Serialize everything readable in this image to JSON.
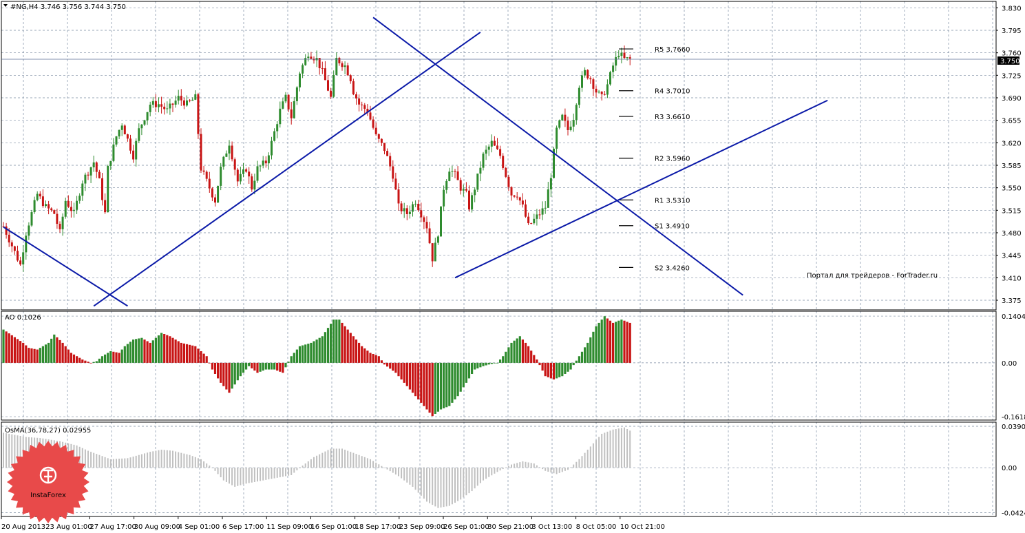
{
  "title": "#NG,H4  3.746 3.756 3.744 3.750",
  "current_price": "3.750",
  "watermark": "Портал для трейдеров - ForTrader.ru",
  "logo": "InstaForex",
  "colors": {
    "bull": "#2e8b2e",
    "bear": "#c81414",
    "trendline": "#0b1aa8",
    "grid": "#7a8aa0",
    "osma": "#c0c0c0",
    "logo_red": "#e84a4a"
  },
  "chart_data": [
    {
      "type": "candlestick",
      "panel": "price",
      "symbol": "#NG",
      "timeframe": "H4",
      "ohlc": [
        "3.746",
        "3.756",
        "3.744",
        "3.750"
      ],
      "ylim": [
        3.36,
        3.84
      ],
      "yticks": [
        "3.830",
        "3.795",
        "3.760",
        "3.725",
        "3.690",
        "3.655",
        "3.620",
        "3.585",
        "3.550",
        "3.515",
        "3.480",
        "3.445",
        "3.410",
        "3.375"
      ],
      "xticks": [
        "20 Aug 2013",
        "23 Aug 01:00",
        "27 Aug 17:00",
        "30 Aug 09:00",
        "4 Sep 01:00",
        "6 Sep 17:00",
        "11 Sep 09:00",
        "16 Sep 01:00",
        "18 Sep 17:00",
        "23 Sep 09:00",
        "26 Sep 01:00",
        "30 Sep 21:00",
        "3 Oct 13:00",
        "8 Oct 05:00",
        "10 Oct 21:00"
      ],
      "close_path": [
        [
          0,
          3.49
        ],
        [
          6,
          3.43
        ],
        [
          8,
          3.48
        ],
        [
          12,
          3.54
        ],
        [
          15,
          3.52
        ],
        [
          18,
          3.51
        ],
        [
          20,
          3.48
        ],
        [
          22,
          3.53
        ],
        [
          25,
          3.51
        ],
        [
          28,
          3.56
        ],
        [
          32,
          3.59
        ],
        [
          34,
          3.56
        ],
        [
          36,
          3.51
        ],
        [
          37,
          3.58
        ],
        [
          40,
          3.63
        ],
        [
          42,
          3.65
        ],
        [
          46,
          3.6
        ],
        [
          48,
          3.64
        ],
        [
          52,
          3.68
        ],
        [
          55,
          3.68
        ],
        [
          58,
          3.67
        ],
        [
          62,
          3.69
        ],
        [
          65,
          3.68
        ],
        [
          68,
          3.69
        ],
        [
          70,
          3.58
        ],
        [
          72,
          3.56
        ],
        [
          75,
          3.53
        ],
        [
          77,
          3.58
        ],
        [
          80,
          3.62
        ],
        [
          83,
          3.56
        ],
        [
          86,
          3.58
        ],
        [
          88,
          3.55
        ],
        [
          90,
          3.58
        ],
        [
          93,
          3.59
        ],
        [
          95,
          3.62
        ],
        [
          98,
          3.67
        ],
        [
          100,
          3.69
        ],
        [
          102,
          3.66
        ],
        [
          105,
          3.73
        ],
        [
          108,
          3.76
        ],
        [
          111,
          3.75
        ],
        [
          113,
          3.73
        ],
        [
          116,
          3.69
        ],
        [
          118,
          3.75
        ],
        [
          121,
          3.74
        ],
        [
          123,
          3.72
        ],
        [
          124,
          3.7
        ],
        [
          126,
          3.68
        ],
        [
          129,
          3.67
        ],
        [
          132,
          3.63
        ],
        [
          135,
          3.61
        ],
        [
          138,
          3.57
        ],
        [
          140,
          3.52
        ],
        [
          143,
          3.51
        ],
        [
          146,
          3.53
        ],
        [
          148,
          3.51
        ],
        [
          150,
          3.49
        ],
        [
          152,
          3.44
        ],
        [
          154,
          3.48
        ],
        [
          156,
          3.55
        ],
        [
          158,
          3.58
        ],
        [
          160,
          3.57
        ],
        [
          162,
          3.55
        ],
        [
          164,
          3.54
        ],
        [
          165,
          3.52
        ],
        [
          167,
          3.55
        ],
        [
          170,
          3.6
        ],
        [
          173,
          3.62
        ],
        [
          176,
          3.6
        ],
        [
          178,
          3.57
        ],
        [
          180,
          3.54
        ],
        [
          182,
          3.54
        ],
        [
          184,
          3.52
        ],
        [
          186,
          3.49
        ],
        [
          188,
          3.5
        ],
        [
          190,
          3.51
        ],
        [
          192,
          3.52
        ],
        [
          194,
          3.57
        ],
        [
          196,
          3.64
        ],
        [
          198,
          3.66
        ],
        [
          200,
          3.64
        ],
        [
          202,
          3.66
        ],
        [
          204,
          3.71
        ],
        [
          206,
          3.73
        ],
        [
          208,
          3.72
        ],
        [
          210,
          3.7
        ],
        [
          212,
          3.69
        ],
        [
          214,
          3.71
        ],
        [
          216,
          3.74
        ],
        [
          218,
          3.76
        ],
        [
          220,
          3.75
        ],
        [
          222,
          3.75
        ]
      ],
      "pivot_levels": [
        {
          "label": "R5 3.7660",
          "value": 3.766
        },
        {
          "label": "R4 3.7010",
          "value": 3.701
        },
        {
          "label": "R3 3.6610",
          "value": 3.661
        },
        {
          "label": "R2 3.5960",
          "value": 3.596
        },
        {
          "label": "R1 3.5310",
          "value": 3.531
        },
        {
          "label": "S1 3.4910",
          "value": 3.491
        },
        {
          "label": "S2 3.4260",
          "value": 3.426
        }
      ],
      "trendlines": [
        {
          "from": [
            0,
            3.489
          ],
          "to": [
            44,
            3.366
          ]
        },
        {
          "from": [
            32,
            3.366
          ],
          "to": [
            169,
            3.792
          ]
        },
        {
          "from": [
            131,
            3.815
          ],
          "to": [
            262,
            3.383
          ]
        },
        {
          "from": [
            160,
            3.41
          ],
          "to": [
            292,
            3.686
          ]
        }
      ],
      "horizontal_line": 3.75
    },
    {
      "type": "histogram",
      "panel": "AO",
      "label": "AO 0.1026",
      "ylim": [
        -0.172,
        0.155
      ],
      "yticks": [
        "0.1404",
        "0.00",
        "-0.1618"
      ],
      "path": [
        [
          0,
          0.1
        ],
        [
          7,
          0.06
        ],
        [
          9,
          0.045
        ],
        [
          12,
          0.04
        ],
        [
          16,
          0.06
        ],
        [
          18,
          0.085
        ],
        [
          21,
          0.06
        ],
        [
          24,
          0.03
        ],
        [
          28,
          0.01
        ],
        [
          31,
          0.0
        ],
        [
          33,
          0.005
        ],
        [
          35,
          0.02
        ],
        [
          38,
          0.035
        ],
        [
          41,
          0.03
        ],
        [
          43,
          0.05
        ],
        [
          46,
          0.07
        ],
        [
          49,
          0.075
        ],
        [
          52,
          0.06
        ],
        [
          56,
          0.09
        ],
        [
          59,
          0.08
        ],
        [
          63,
          0.06
        ],
        [
          68,
          0.05
        ],
        [
          72,
          0.02
        ],
        [
          74,
          -0.02
        ],
        [
          77,
          -0.06
        ],
        [
          80,
          -0.09
        ],
        [
          84,
          -0.04
        ],
        [
          87,
          -0.01
        ],
        [
          90,
          -0.03
        ],
        [
          93,
          -0.02
        ],
        [
          96,
          -0.02
        ],
        [
          99,
          -0.03
        ],
        [
          102,
          0.02
        ],
        [
          105,
          0.05
        ],
        [
          109,
          0.06
        ],
        [
          113,
          0.08
        ],
        [
          117,
          0.13
        ],
        [
          119,
          0.13
        ],
        [
          123,
          0.09
        ],
        [
          127,
          0.05
        ],
        [
          130,
          0.03
        ],
        [
          133,
          0.02
        ],
        [
          135,
          -0.005
        ],
        [
          139,
          -0.03
        ],
        [
          143,
          -0.07
        ],
        [
          147,
          -0.11
        ],
        [
          151,
          -0.15
        ],
        [
          152,
          -0.16
        ],
        [
          155,
          -0.14
        ],
        [
          158,
          -0.13
        ],
        [
          161,
          -0.1
        ],
        [
          164,
          -0.06
        ],
        [
          167,
          -0.02
        ],
        [
          170,
          -0.01
        ],
        [
          172,
          -0.005
        ],
        [
          175,
          0.0
        ],
        [
          177,
          0.02
        ],
        [
          180,
          0.06
        ],
        [
          183,
          0.08
        ],
        [
          186,
          0.05
        ],
        [
          189,
          0.01
        ],
        [
          192,
          -0.04
        ],
        [
          195,
          -0.05
        ],
        [
          198,
          -0.04
        ],
        [
          201,
          -0.02
        ],
        [
          204,
          0.02
        ],
        [
          207,
          0.06
        ],
        [
          210,
          0.11
        ],
        [
          213,
          0.14
        ],
        [
          216,
          0.12
        ],
        [
          219,
          0.13
        ],
        [
          222,
          0.12
        ]
      ]
    },
    {
      "type": "histogram",
      "panel": "OsMA",
      "label": "OsMA(36,78,27) 0.02955",
      "ylim": [
        -0.046,
        0.043
      ],
      "yticks": [
        "0.03909",
        "0.00",
        "-0.04245"
      ],
      "path": [
        [
          0,
          0.033
        ],
        [
          8,
          0.029
        ],
        [
          13,
          0.028
        ],
        [
          20,
          0.025
        ],
        [
          26,
          0.021
        ],
        [
          30,
          0.016
        ],
        [
          34,
          0.012
        ],
        [
          38,
          0.008
        ],
        [
          44,
          0.009
        ],
        [
          48,
          0.012
        ],
        [
          52,
          0.015
        ],
        [
          56,
          0.017
        ],
        [
          60,
          0.016
        ],
        [
          66,
          0.012
        ],
        [
          70,
          0.008
        ],
        [
          74,
          0.0
        ],
        [
          78,
          -0.012
        ],
        [
          82,
          -0.018
        ],
        [
          86,
          -0.015
        ],
        [
          92,
          -0.012
        ],
        [
          98,
          -0.009
        ],
        [
          102,
          -0.007
        ],
        [
          106,
          0.002
        ],
        [
          110,
          0.01
        ],
        [
          116,
          0.018
        ],
        [
          120,
          0.018
        ],
        [
          126,
          0.012
        ],
        [
          130,
          0.008
        ],
        [
          135,
          0.0
        ],
        [
          140,
          -0.008
        ],
        [
          145,
          -0.018
        ],
        [
          150,
          -0.032
        ],
        [
          154,
          -0.038
        ],
        [
          158,
          -0.036
        ],
        [
          162,
          -0.03
        ],
        [
          166,
          -0.022
        ],
        [
          170,
          -0.012
        ],
        [
          175,
          -0.004
        ],
        [
          180,
          0.003
        ],
        [
          184,
          0.006
        ],
        [
          188,
          0.004
        ],
        [
          192,
          -0.003
        ],
        [
          196,
          -0.006
        ],
        [
          200,
          -0.002
        ],
        [
          204,
          0.008
        ],
        [
          208,
          0.02
        ],
        [
          212,
          0.032
        ],
        [
          216,
          0.036
        ],
        [
          220,
          0.038
        ],
        [
          222,
          0.035
        ]
      ]
    }
  ]
}
